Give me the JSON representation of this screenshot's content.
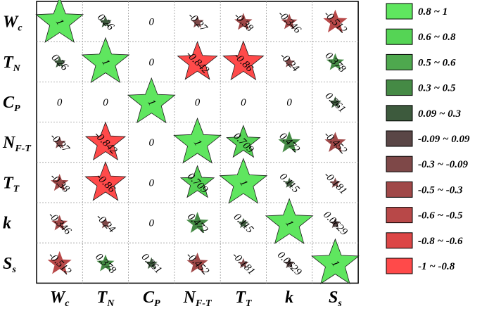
{
  "chart_data": {
    "type": "heatmap",
    "subtype": "star-correlation-matrix",
    "variables": [
      {
        "base": "W",
        "sub": "c"
      },
      {
        "base": "T",
        "sub": "N"
      },
      {
        "base": "C",
        "sub": "P"
      },
      {
        "base": "N",
        "sub": "F-T"
      },
      {
        "base": "T",
        "sub": "T"
      },
      {
        "base": "k",
        "sub": ""
      },
      {
        "base": "S",
        "sub": "s"
      }
    ],
    "matrix": [
      [
        1,
        0.26,
        0,
        -0.27,
        -0.38,
        -0.346,
        -0.512
      ],
      [
        0.26,
        1,
        0,
        -0.842,
        -0.86,
        -0.24,
        0.378
      ],
      [
        0,
        0,
        1,
        0,
        0,
        0,
        0.261
      ],
      [
        -0.27,
        -0.842,
        0,
        1,
        0.709,
        0.472,
        -0.452
      ],
      [
        -0.38,
        -0.86,
        0,
        0.709,
        1,
        0.115,
        -0.181
      ],
      [
        -0.346,
        -0.24,
        0,
        0.472,
        0.115,
        1,
        0.0629
      ],
      [
        -0.512,
        0.378,
        0.261,
        -0.452,
        -0.181,
        0.0629,
        1
      ]
    ],
    "labels": [
      [
        "1",
        "0.26",
        "0",
        "-0.27",
        "-0.38",
        "-0.346",
        "-0.512"
      ],
      [
        "0.26",
        "1",
        "0",
        "-0.842",
        "-0.86",
        "-0.24",
        "0.378"
      ],
      [
        "0",
        "0",
        "1",
        "0",
        "0",
        "0",
        "0.261"
      ],
      [
        "-0.27",
        "-0.842",
        "0",
        "1",
        "0.709",
        "0.472",
        "-0.452"
      ],
      [
        "-0.38",
        "-0.86",
        "0",
        "0.709",
        "1",
        "0.115",
        "-0.181"
      ],
      [
        "-0.346",
        "-0.24",
        "0",
        "0.472",
        "0.115",
        "1",
        "0.0629"
      ],
      [
        "-0.512",
        "0.378",
        "0.261",
        "-0.452",
        "-0.181",
        "0.0629",
        "1"
      ]
    ],
    "legend": [
      {
        "range": "0.8     ~ 1",
        "color": "#5fe65f"
      },
      {
        "range": "0.6     ~ 0.8",
        "color": "#55d455"
      },
      {
        "range": "0.5     ~ 0.6",
        "color": "#4ea84e"
      },
      {
        "range": "0.3     ~ 0.5",
        "color": "#458a45"
      },
      {
        "range": "0.09   ~ 0.3",
        "color": "#3d5a3d"
      },
      {
        "range": "-0.09 ~ 0.09",
        "color": "#5a4646"
      },
      {
        "range": "-0.3   ~ -0.09",
        "color": "#7e4848"
      },
      {
        "range": "-0.5   ~ -0.3",
        "color": "#a04848"
      },
      {
        "range": "-0.6   ~ -0.5",
        "color": "#b84848"
      },
      {
        "range": "-0.8   ~ -0.6",
        "color": "#dc4646"
      },
      {
        "range": "-1       ~ -0.8",
        "color": "#ff4a4a"
      }
    ],
    "legend_position": "right",
    "grid": true
  }
}
